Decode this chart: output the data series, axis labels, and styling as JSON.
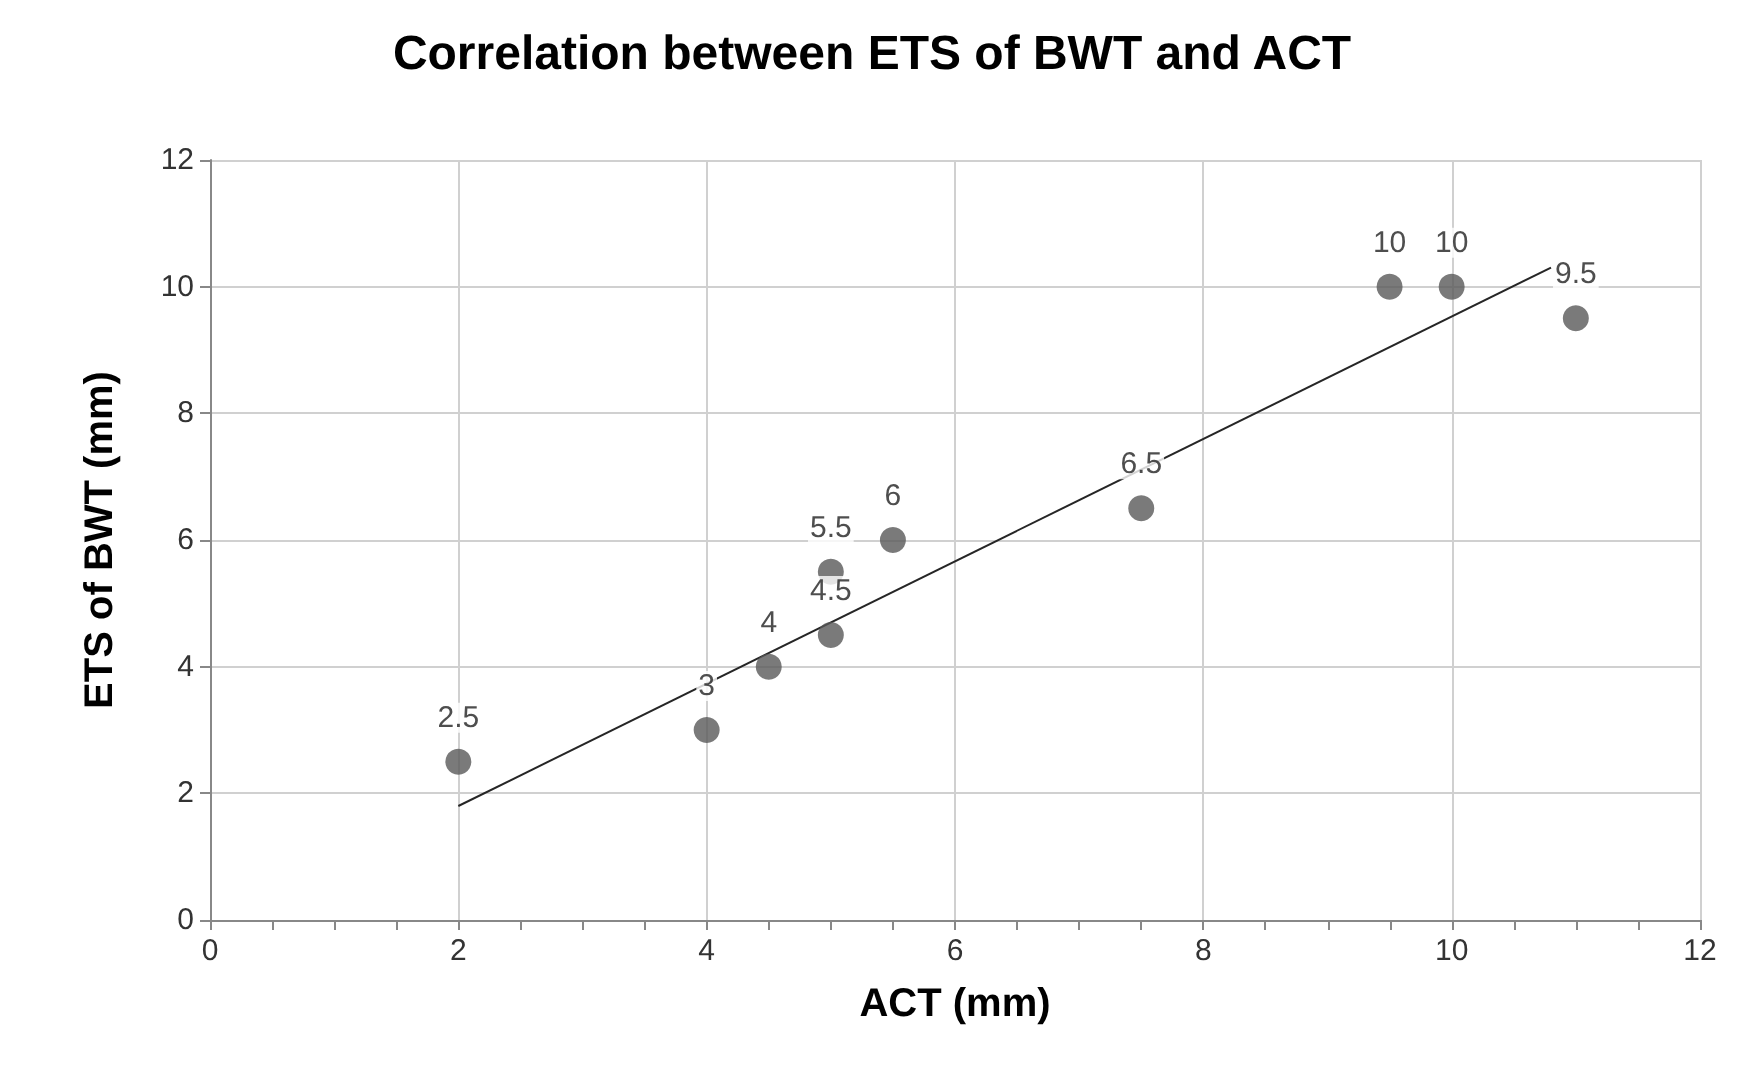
{
  "chart_data": {
    "type": "scatter",
    "title": "Correlation between ETS of BWT and ACT",
    "xlabel": "ACT (mm)",
    "ylabel": "ETS of BWT (mm)",
    "series": [
      {
        "type": "scatter",
        "color": "#595959",
        "marker": "circle",
        "data_labels": true,
        "x": [
          2,
          4,
          4.5,
          5,
          5,
          5.5,
          7.5,
          9.5,
          10,
          11
        ],
        "values": [
          2.5,
          3,
          4,
          4.5,
          5.5,
          6,
          6.5,
          10,
          10,
          9.5
        ]
      },
      {
        "type": "line",
        "color": "#262626",
        "marker": "none",
        "x": [
          2,
          10.8
        ],
        "values": [
          1.8,
          10.3
        ]
      }
    ],
    "xlim": [
      0,
      12
    ],
    "xticks": [
      0,
      2,
      4,
      6,
      8,
      10,
      12
    ],
    "ylim": [
      0,
      12
    ],
    "yticks": [
      0,
      2,
      4,
      6,
      8,
      10,
      12
    ],
    "grid": true
  }
}
